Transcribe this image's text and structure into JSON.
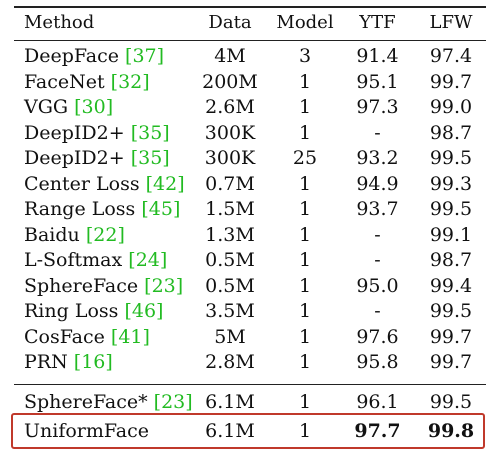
{
  "columns": {
    "method": "Method",
    "data": "Data",
    "model": "Model",
    "ytf": "YTF",
    "lfw": "LFW"
  },
  "rows": [
    {
      "name": "DeepFace",
      "cite": "37",
      "data": "4M",
      "model": "3",
      "ytf": "91.4",
      "lfw": "97.4"
    },
    {
      "name": "FaceNet",
      "cite": "32",
      "data": "200M",
      "model": "1",
      "ytf": "95.1",
      "lfw": "99.7"
    },
    {
      "name": "VGG",
      "cite": "30",
      "data": "2.6M",
      "model": "1",
      "ytf": "97.3",
      "lfw": "99.0"
    },
    {
      "name": "DeepID2+",
      "cite": "35",
      "data": "300K",
      "model": "1",
      "ytf": "-",
      "lfw": "98.7"
    },
    {
      "name": "DeepID2+",
      "cite": "35",
      "data": "300K",
      "model": "25",
      "ytf": "93.2",
      "lfw": "99.5"
    },
    {
      "name": "Center Loss",
      "cite": "42",
      "data": "0.7M",
      "model": "1",
      "ytf": "94.9",
      "lfw": "99.3"
    },
    {
      "name": "Range Loss",
      "cite": "45",
      "data": "1.5M",
      "model": "1",
      "ytf": "93.7",
      "lfw": "99.5"
    },
    {
      "name": "Baidu",
      "cite": "22",
      "data": "1.3M",
      "model": "1",
      "ytf": "-",
      "lfw": "99.1"
    },
    {
      "name": "L-Softmax",
      "cite": "24",
      "data": "0.5M",
      "model": "1",
      "ytf": "-",
      "lfw": "98.7"
    },
    {
      "name": "SphereFace",
      "cite": "23",
      "data": "0.5M",
      "model": "1",
      "ytf": "95.0",
      "lfw": "99.4"
    },
    {
      "name": "Ring Loss",
      "cite": "46",
      "data": "3.5M",
      "model": "1",
      "ytf": "-",
      "lfw": "99.5"
    },
    {
      "name": "CosFace",
      "cite": "41",
      "data": "5M",
      "model": "1",
      "ytf": "97.6",
      "lfw": "99.7"
    },
    {
      "name": "PRN",
      "cite": "16",
      "data": "2.8M",
      "model": "1",
      "ytf": "95.8",
      "lfw": "99.7"
    }
  ],
  "comparison_rows": [
    {
      "name": "SphereFace*",
      "cite": "23",
      "data": "6.1M",
      "model": "1",
      "ytf": "96.1",
      "lfw": "99.5"
    },
    {
      "name": "UniformFace",
      "cite": "",
      "data": "6.1M",
      "model": "1",
      "ytf": "97.7",
      "lfw": "99.8"
    }
  ],
  "colors": {
    "citation": "#22bb22",
    "highlight_border": "#c0392b"
  }
}
